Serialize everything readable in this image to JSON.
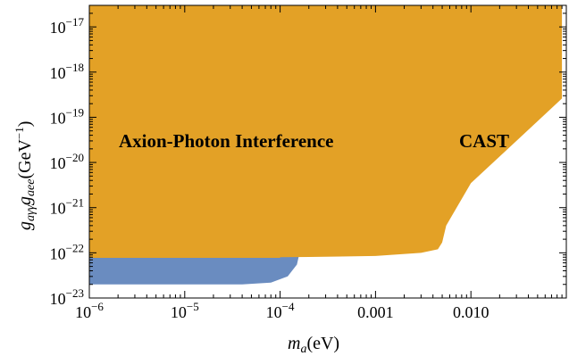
{
  "chart_data": {
    "type": "area",
    "title": "",
    "xscale": "log",
    "yscale": "log",
    "xlim": [
      1e-06,
      0.1
    ],
    "ylim": [
      1e-23,
      3e-17
    ],
    "xlabel_symbol": "m",
    "xlabel_sub": "a",
    "xlabel_unit": "(eV)",
    "ylabel_parts": [
      "g",
      "aγγ",
      "g",
      "aee",
      "(GeV",
      "−1",
      ")"
    ],
    "x_ticks": [
      {
        "value": 1e-06,
        "base": "10",
        "exp": "−6"
      },
      {
        "value": 1e-05,
        "base": "10",
        "exp": "−5"
      },
      {
        "value": 0.0001,
        "base": "10",
        "exp": "−4"
      },
      {
        "value": 0.001,
        "text": "0.001"
      },
      {
        "value": 0.01,
        "text": "0.010"
      }
    ],
    "y_ticks": [
      {
        "value": 1e-23,
        "base": "10",
        "exp": "−23"
      },
      {
        "value": 1e-22,
        "base": "10",
        "exp": "−22"
      },
      {
        "value": 1e-21,
        "base": "10",
        "exp": "−21"
      },
      {
        "value": 1e-20,
        "base": "10",
        "exp": "−20"
      },
      {
        "value": 1e-19,
        "base": "10",
        "exp": "−19"
      },
      {
        "value": 1e-18,
        "base": "10",
        "exp": "−18"
      },
      {
        "value": 1e-17,
        "base": "10",
        "exp": "−17"
      }
    ],
    "series": [
      {
        "label": "Axion-Photon Interference",
        "color": "#6a8cc0",
        "boundary": {
          "x": [
            1e-06,
            1e-05,
            4e-05,
            8e-05,
            0.00012,
            0.00015,
            0.00016,
            0.00025,
            0.0004,
            0.001,
            0.01,
            0.09
          ],
          "y": [
            2e-23,
            2e-23,
            2e-23,
            2.2e-23,
            3e-23,
            5.5e-23,
            1e-22,
            2.5e-22,
            6.5e-22,
            4e-21,
            4e-19,
            3.3e-17
          ]
        }
      },
      {
        "label": "CAST",
        "color": "#e3a126",
        "boundary": {
          "x": [
            1e-06,
            0.0001,
            0.0002,
            0.001,
            0.003,
            0.0045,
            0.005,
            0.0055,
            0.01,
            0.03,
            0.09
          ],
          "y": [
            8e-23,
            8e-23,
            8.1e-23,
            8.5e-23,
            1e-22,
            1.2e-22,
            1.7e-22,
            4e-22,
            3.5e-21,
            3e-20,
            2.6e-19
          ]
        }
      }
    ]
  }
}
